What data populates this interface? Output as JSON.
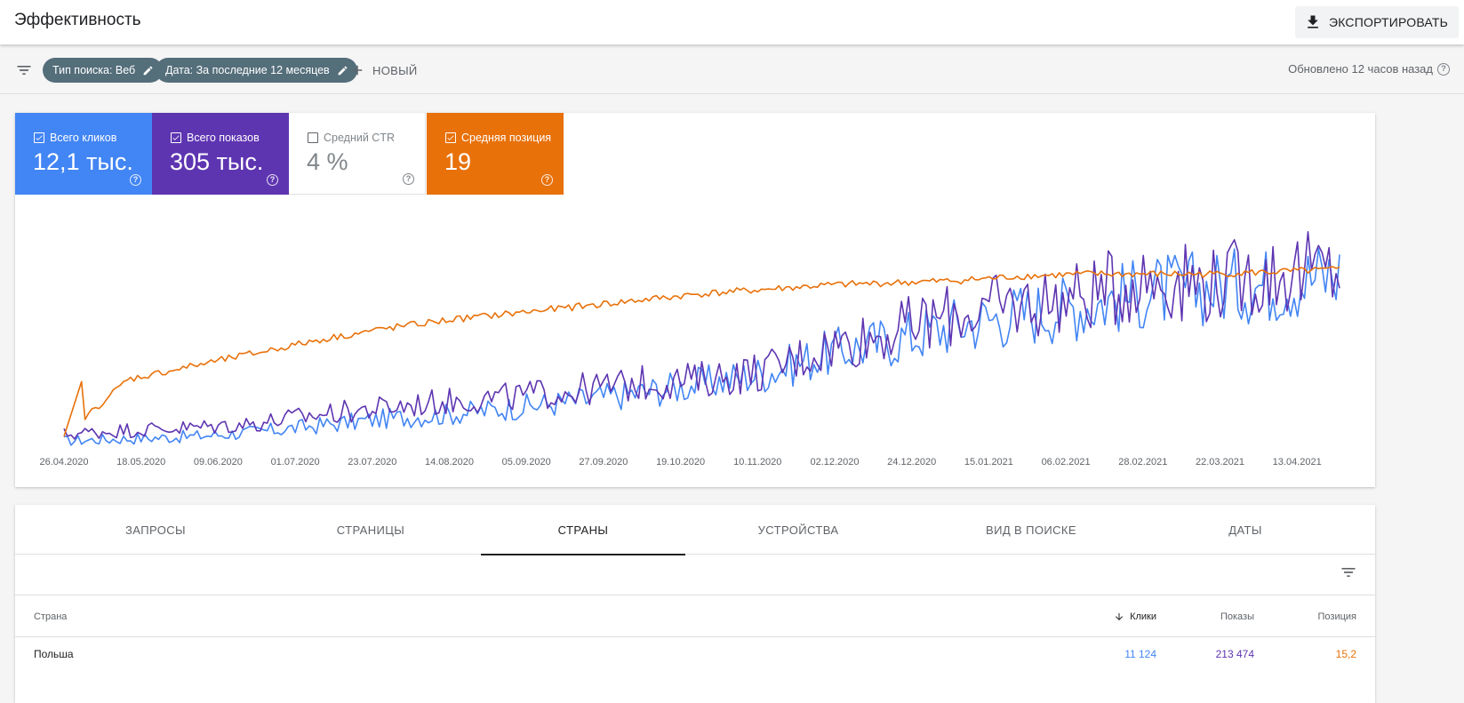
{
  "header": {
    "title": "Эффективность",
    "export_label": "ЭКСПОРТИРОВАТЬ"
  },
  "filters": {
    "chips": [
      "Тип поиска: Веб",
      "Дата: За последние 12 месяцев"
    ],
    "new_label": "НОВЫЙ",
    "updated_text": "Обновлено 12 часов назад"
  },
  "metrics": {
    "clicks": {
      "label": "Всего кликов",
      "value": "12,1 тыс.",
      "checked": true
    },
    "impressions": {
      "label": "Всего показов",
      "value": "305 тыс.",
      "checked": true
    },
    "ctr": {
      "label": "Средний CTR",
      "value": "4 %",
      "checked": false
    },
    "position": {
      "label": "Средняя позиция",
      "value": "19",
      "checked": true
    }
  },
  "colors": {
    "clicks": "#4285f4",
    "impressions": "#5e35b1",
    "position": "#e8710a"
  },
  "chart_data": {
    "type": "line",
    "x_tick_labels": [
      "26.04.2020",
      "18.05.2020",
      "09.06.2020",
      "01.07.2020",
      "23.07.2020",
      "14.08.2020",
      "05.09.2020",
      "27.09.2020",
      "19.10.2020",
      "10.11.2020",
      "02.12.2020",
      "24.12.2020",
      "15.01.2021",
      "06.02.2021",
      "28.02.2021",
      "22.03.2021",
      "13.04.2021"
    ],
    "x_range": [
      "26.04.2020",
      "25.04.2021"
    ],
    "grid": false,
    "series": [
      {
        "name": "Клики",
        "color": "#4285f4",
        "trend": [
          2,
          3,
          4,
          6,
          9,
          12,
          14,
          17,
          20,
          24,
          28,
          33,
          42,
          48,
          55,
          60,
          64,
          70,
          72,
          74,
          78
        ]
      },
      {
        "name": "Показы",
        "color": "#5e35b1",
        "trend": [
          5,
          7,
          8,
          10,
          14,
          17,
          20,
          22,
          25,
          28,
          30,
          34,
          45,
          52,
          60,
          64,
          68,
          76,
          74,
          78,
          80
        ]
      },
      {
        "name": "Позиция",
        "color": "#e8710a",
        "trend": [
          4,
          30,
          36,
          42,
          48,
          53,
          57,
          60,
          63,
          66,
          69,
          71,
          73,
          74,
          75,
          77,
          78,
          78,
          78,
          79,
          80
        ]
      }
    ]
  },
  "tabs": [
    "ЗАПРОСЫ",
    "СТРАНИЦЫ",
    "СТРАНЫ",
    "УСТРОЙСТВА",
    "ВИД В ПОИСКЕ",
    "ДАТЫ"
  ],
  "active_tab": "СТРАНЫ",
  "table": {
    "columns": {
      "country": "Страна",
      "clicks": "Клики",
      "impressions": "Показы",
      "position": "Позиция"
    },
    "rows": [
      {
        "country": "Польша",
        "clicks": "11 124",
        "impressions": "213 474",
        "position": "15,2"
      }
    ]
  }
}
